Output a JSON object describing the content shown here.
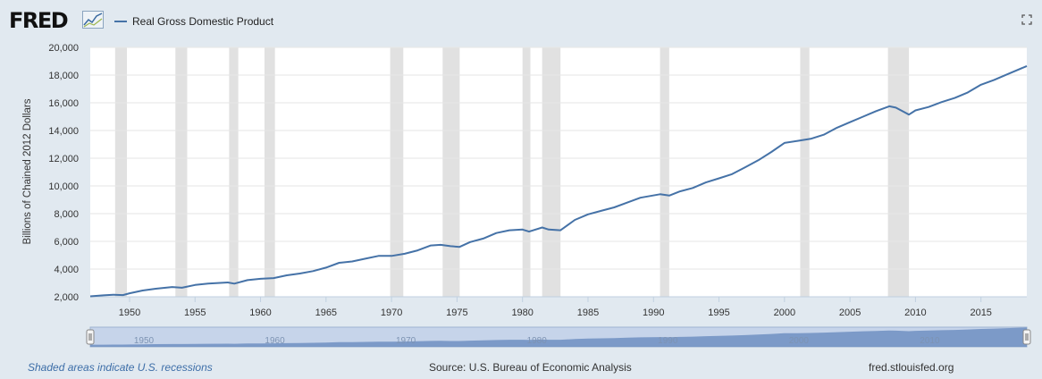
{
  "header": {
    "logo_text": "FRED",
    "logo_icon": "fred-chart-logo-icon",
    "legend_label": "Real Gross Domestic Product",
    "fullscreen_icon": "fullscreen-icon"
  },
  "colors": {
    "line": "#4572a7",
    "recession": "#e1e1e1",
    "grid": "#e6e6e6",
    "navigator_fill": "#6f8fc2"
  },
  "footer": {
    "note": "Shaded areas indicate U.S. recessions",
    "source": "Source: U.S. Bureau of Economic Analysis",
    "site": "fred.stlouisfed.org"
  },
  "chart_data": {
    "type": "line",
    "title": "",
    "ylabel": "Billions of Chained 2012 Dollars",
    "xlim": [
      1947,
      2018.5
    ],
    "ylim": [
      2000,
      20000
    ],
    "yticks": [
      2000,
      4000,
      6000,
      8000,
      10000,
      12000,
      14000,
      16000,
      18000,
      20000
    ],
    "ytick_labels": [
      "2,000",
      "4,000",
      "6,000",
      "8,000",
      "10,000",
      "12,000",
      "14,000",
      "16,000",
      "18,000",
      "20,000"
    ],
    "xticks": [
      1950,
      1955,
      1960,
      1965,
      1970,
      1975,
      1980,
      1985,
      1990,
      1995,
      2000,
      2005,
      2010,
      2015
    ],
    "xtick_labels": [
      "1950",
      "1955",
      "1960",
      "1965",
      "1970",
      "1975",
      "1980",
      "1985",
      "1990",
      "1995",
      "2000",
      "2005",
      "2010",
      "2015"
    ],
    "navigator_labels": [
      "1950",
      "1960",
      "1970",
      "1980",
      "1990",
      "2000",
      "2010"
    ],
    "grid": true,
    "legend": "top-left",
    "recessions": [
      [
        1948.9,
        1949.8
      ],
      [
        1953.5,
        1954.4
      ],
      [
        1957.6,
        1958.3
      ],
      [
        1960.3,
        1961.1
      ],
      [
        1969.9,
        1970.9
      ],
      [
        1973.9,
        1975.2
      ],
      [
        1980.0,
        1980.6
      ],
      [
        1981.5,
        1982.9
      ],
      [
        1990.5,
        1991.2
      ],
      [
        2001.2,
        2001.9
      ],
      [
        2007.9,
        2009.5
      ]
    ],
    "series": [
      {
        "name": "Real Gross Domestic Product",
        "x": [
          1947,
          1948,
          1948.75,
          1949.5,
          1950,
          1951,
          1952,
          1953.25,
          1954,
          1955,
          1956,
          1957.5,
          1958,
          1959,
          1960,
          1961,
          1962,
          1963,
          1964,
          1965,
          1966,
          1967,
          1968,
          1969,
          1970,
          1971,
          1972,
          1973,
          1973.75,
          1974.5,
          1975.2,
          1976,
          1977,
          1978,
          1979,
          1980,
          1980.5,
          1981.5,
          1982,
          1982.9,
          1984,
          1985,
          1986,
          1987,
          1988,
          1989,
          1990.5,
          1991.2,
          1992,
          1993,
          1994,
          1995,
          1996,
          1997,
          1998,
          1999,
          2000,
          2001,
          2002,
          2003,
          2004,
          2005,
          2006,
          2007,
          2008,
          2008.5,
          2009.5,
          2010,
          2011,
          2012,
          2013,
          2014,
          2015,
          2016,
          2017,
          2018.5
        ],
        "y": [
          2030,
          2100,
          2150,
          2120,
          2250,
          2450,
          2580,
          2700,
          2650,
          2850,
          2950,
          3030,
          2950,
          3200,
          3300,
          3350,
          3550,
          3680,
          3850,
          4100,
          4450,
          4550,
          4750,
          4950,
          4950,
          5100,
          5350,
          5700,
          5750,
          5650,
          5600,
          5950,
          6200,
          6600,
          6800,
          6850,
          6700,
          7000,
          6850,
          6800,
          7550,
          7950,
          8200,
          8450,
          8800,
          9150,
          9400,
          9300,
          9600,
          9850,
          10250,
          10550,
          10850,
          11350,
          11850,
          12450,
          13100,
          13250,
          13400,
          13700,
          14200,
          14600,
          15000,
          15400,
          15750,
          15650,
          15150,
          15450,
          15700,
          16050,
          16350,
          16750,
          17300,
          17650,
          18050,
          18650
        ]
      }
    ]
  }
}
